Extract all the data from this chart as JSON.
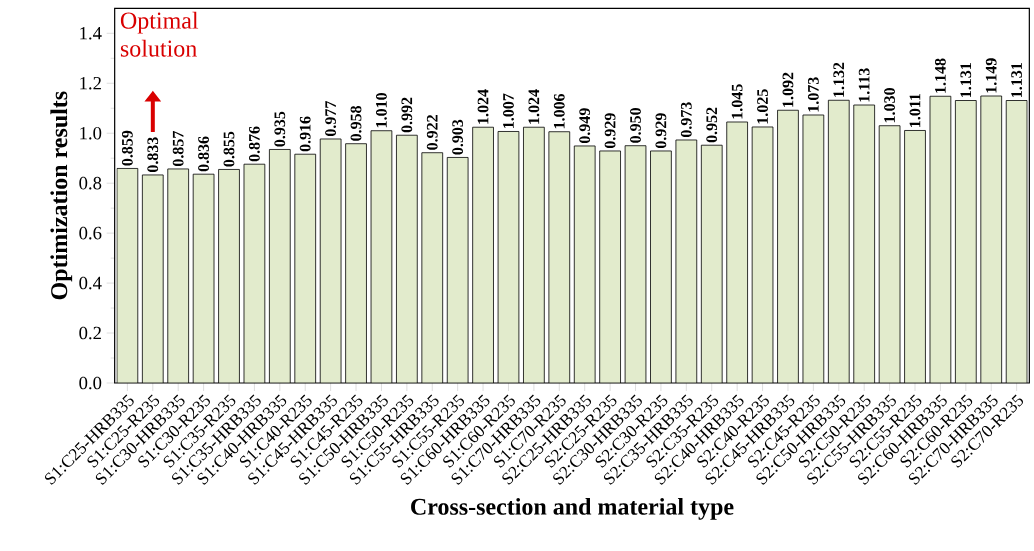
{
  "chart_data": {
    "type": "bar",
    "xlabel": "Cross-section and material type",
    "ylabel": "Optimization results",
    "categories": [
      "S1:C25-HRB335",
      "S1:C25-R235",
      "S1:C30-HRB335",
      "S1:C30-R235",
      "S1:C35-R235",
      "S1:C35-HRB335",
      "S1:C40-HRB335",
      "S1:C40-R235",
      "S1:C45-HRB335",
      "S1:C45-R235",
      "S1:C50-HRB335",
      "S1:C50-R235",
      "S1:C55-HRB335",
      "S1:C55-R235",
      "S1:C60-HRB335",
      "S1:C60-R235",
      "S1:C70-HRB335",
      "S1:C70-R235",
      "S2:C25-HRB335",
      "S2:C25-R235",
      "S2:C30-HRB335",
      "S2:C30-R235",
      "S2:C35-HRB335",
      "S2:C35-R235",
      "S2:C40-HRB335",
      "S2:C40-R235",
      "S2:C45-HRB335",
      "S2:C45-R235",
      "S2:C50-HRB335",
      "S2:C50-R235",
      "S2:C55-HRB335",
      "S2:C55-R235",
      "S2:C60-HRB335",
      "S2:C60-R235",
      "S2:C70-HRB335",
      "S2:C70-R235"
    ],
    "values": [
      0.859,
      0.833,
      0.857,
      0.836,
      0.855,
      0.876,
      0.935,
      0.916,
      0.977,
      0.958,
      1.01,
      0.992,
      0.922,
      0.903,
      1.024,
      1.007,
      1.024,
      1.006,
      0.949,
      0.929,
      0.95,
      0.929,
      0.973,
      0.952,
      1.045,
      1.025,
      1.092,
      1.073,
      1.132,
      1.113,
      1.03,
      1.011,
      1.148,
      1.131,
      1.149,
      1.131
    ],
    "value_labels": [
      "0.859",
      "0.833",
      "0.857",
      "0.836",
      "0.855",
      "0.876",
      "0.935",
      "0.916",
      "0.977",
      "0.958",
      "1.010",
      "0.992",
      "0.922",
      "0.903",
      "1.024",
      "1.007",
      "1.024",
      "1.006",
      "0.949",
      "0.929",
      "0.950",
      "0.929",
      "0.973",
      "0.952",
      "1.045",
      "1.025",
      "1.092",
      "1.073",
      "1.132",
      "1.113",
      "1.030",
      "1.011",
      "1.148",
      "1.131",
      "1.149",
      "1.131"
    ],
    "color": "#e2ebcc",
    "ylim": [
      0,
      1.5
    ],
    "yticks": [
      {
        "value": 0,
        "label": "0.0"
      },
      0.2,
      0.4,
      0.6,
      0.8,
      {
        "value": 1,
        "label": "1.0"
      },
      1.2,
      1.4
    ],
    "grid": false,
    "annotations": [
      "Optimal solution"
    ]
  }
}
